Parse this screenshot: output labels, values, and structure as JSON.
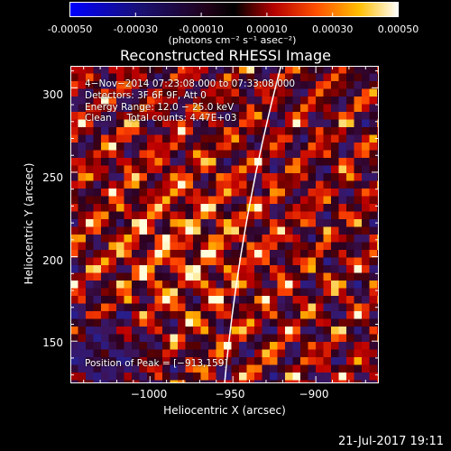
{
  "colorbar": {
    "ticks": [
      "-0.00050",
      "-0.00030",
      "-0.00010",
      "0.00010",
      "0.00030",
      "0.00050"
    ],
    "unit": "(photons cm⁻² s⁻¹ asec⁻²)",
    "range": [
      -0.0005,
      0.0005
    ]
  },
  "footer": {
    "date": "21-Jul-2017 19:11"
  },
  "chart_data": {
    "type": "heatmap",
    "title": "Reconstructed RHESSI Image",
    "xlabel": "Heliocentric X (arcsec)",
    "ylabel": "Heliocentric Y (arcsec)",
    "xlim": [
      -1048,
      -862
    ],
    "ylim": [
      125,
      313
    ],
    "x_ticks": [
      -1000,
      -950,
      -900
    ],
    "y_ticks": [
      150,
      200,
      250,
      300
    ],
    "x_tick_labels": [
      "−1000",
      "−950",
      "−900"
    ],
    "y_tick_labels": [
      "150",
      "200",
      "250",
      "300"
    ],
    "colormap": "hot",
    "limb": "white arc near X = -950",
    "annotations": {
      "time": "4−Nov−2014 07:23:08.000 to 07:33:08.000",
      "detectors": "Detectors: 3F 6F 9F, Att 0",
      "energy": "Energy Range: 12.0 − 25.0 keV",
      "clean": "Clean     Total counts: 4.47E+03",
      "peak": "Position of Peak = [−913,159]"
    }
  }
}
